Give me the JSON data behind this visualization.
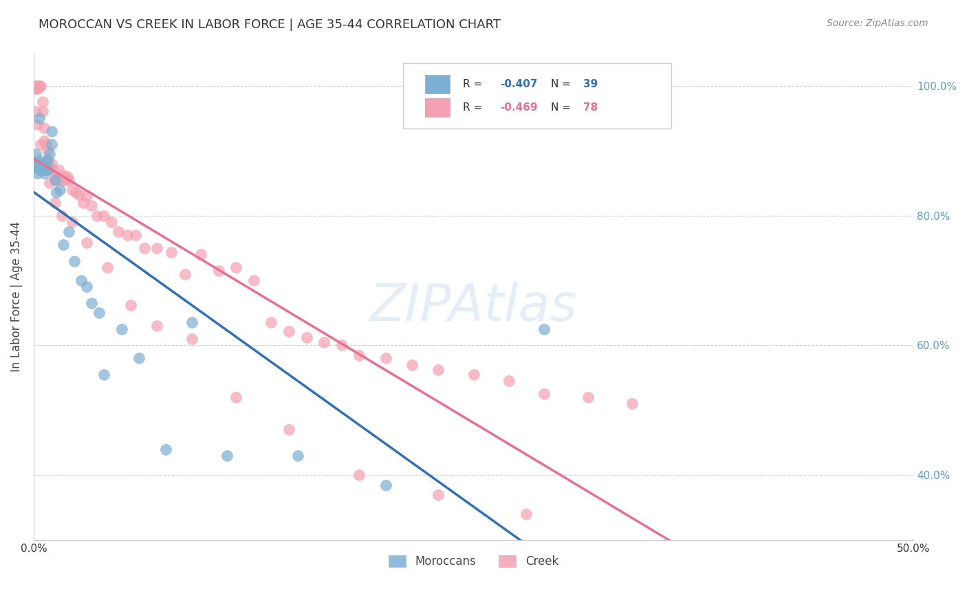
{
  "title": "MOROCCAN VS CREEK IN LABOR FORCE | AGE 35-44 CORRELATION CHART",
  "source": "Source: ZipAtlas.com",
  "ylabel": "In Labor Force | Age 35-44",
  "xlim": [
    0.0,
    0.5
  ],
  "ylim": [
    0.3,
    1.05
  ],
  "xtick_positions": [
    0.0,
    0.1,
    0.2,
    0.3,
    0.4,
    0.5
  ],
  "xtick_labels": [
    "0.0%",
    "",
    "",
    "",
    "",
    "50.0%"
  ],
  "ytick_positions": [
    0.4,
    0.6,
    0.8,
    1.0
  ],
  "ytick_labels": [
    "40.0%",
    "60.0%",
    "80.0%",
    "100.0%"
  ],
  "moroccan_color": "#7bafd4",
  "creek_color": "#f4a0b0",
  "moroccan_R": -0.407,
  "moroccan_N": 39,
  "creek_R": -0.469,
  "creek_N": 78,
  "moroccan_x": [
    0.001,
    0.001,
    0.002,
    0.002,
    0.003,
    0.003,
    0.003,
    0.004,
    0.004,
    0.005,
    0.005,
    0.006,
    0.006,
    0.007,
    0.007,
    0.008,
    0.008,
    0.009,
    0.01,
    0.01,
    0.012,
    0.013,
    0.015,
    0.017,
    0.02,
    0.023,
    0.027,
    0.03,
    0.033,
    0.037,
    0.04,
    0.05,
    0.06,
    0.075,
    0.09,
    0.11,
    0.15,
    0.2,
    0.29
  ],
  "moroccan_y": [
    0.895,
    0.88,
    0.875,
    0.865,
    0.885,
    0.87,
    0.95,
    0.88,
    0.87,
    0.88,
    0.87,
    0.875,
    0.865,
    0.88,
    0.87,
    0.885,
    0.87,
    0.895,
    0.91,
    0.93,
    0.855,
    0.835,
    0.84,
    0.755,
    0.775,
    0.73,
    0.7,
    0.69,
    0.665,
    0.65,
    0.555,
    0.625,
    0.58,
    0.44,
    0.635,
    0.43,
    0.43,
    0.385,
    0.625
  ],
  "creek_x": [
    0.001,
    0.001,
    0.002,
    0.002,
    0.003,
    0.003,
    0.004,
    0.005,
    0.005,
    0.006,
    0.006,
    0.007,
    0.008,
    0.008,
    0.009,
    0.01,
    0.011,
    0.012,
    0.013,
    0.014,
    0.015,
    0.016,
    0.017,
    0.018,
    0.019,
    0.02,
    0.022,
    0.024,
    0.026,
    0.028,
    0.03,
    0.033,
    0.036,
    0.04,
    0.044,
    0.048,
    0.053,
    0.058,
    0.063,
    0.07,
    0.078,
    0.086,
    0.095,
    0.105,
    0.115,
    0.125,
    0.135,
    0.145,
    0.155,
    0.165,
    0.175,
    0.185,
    0.2,
    0.215,
    0.23,
    0.25,
    0.27,
    0.29,
    0.315,
    0.34,
    0.001,
    0.002,
    0.004,
    0.006,
    0.009,
    0.012,
    0.016,
    0.022,
    0.03,
    0.042,
    0.055,
    0.07,
    0.09,
    0.115,
    0.145,
    0.185,
    0.23,
    0.28
  ],
  "creek_y": [
    1.0,
    0.995,
    1.0,
    0.995,
    1.0,
    0.998,
    1.0,
    0.975,
    0.96,
    0.935,
    0.915,
    0.91,
    0.9,
    0.885,
    0.875,
    0.88,
    0.87,
    0.86,
    0.855,
    0.87,
    0.86,
    0.855,
    0.862,
    0.855,
    0.86,
    0.855,
    0.84,
    0.835,
    0.832,
    0.82,
    0.83,
    0.815,
    0.8,
    0.8,
    0.79,
    0.775,
    0.77,
    0.77,
    0.75,
    0.75,
    0.743,
    0.71,
    0.74,
    0.715,
    0.72,
    0.7,
    0.635,
    0.622,
    0.612,
    0.605,
    0.6,
    0.585,
    0.58,
    0.57,
    0.562,
    0.555,
    0.545,
    0.525,
    0.52,
    0.51,
    0.96,
    0.94,
    0.91,
    0.87,
    0.85,
    0.82,
    0.8,
    0.79,
    0.758,
    0.72,
    0.662,
    0.63,
    0.61,
    0.52,
    0.47,
    0.4,
    0.37,
    0.34
  ],
  "background_color": "#ffffff",
  "grid_color": "#cccccc",
  "legend_moroccan_label": "Moroccans",
  "legend_creek_label": "Creek",
  "right_ytick_color": "#5b9bd5",
  "moroccan_line_color": "#3070b8",
  "creek_line_color": "#e87090",
  "moroccan_dashed_color": "#a0c0e8"
}
